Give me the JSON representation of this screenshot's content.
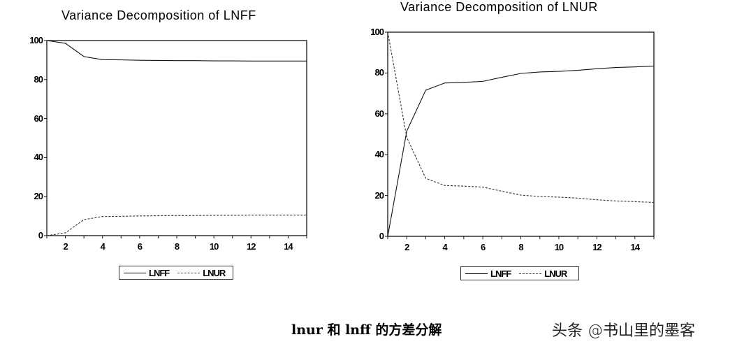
{
  "chart_data": [
    {
      "type": "line",
      "title": "Variance Decomposition of LNFF",
      "xlabel": "",
      "ylabel": "",
      "x": [
        1,
        2,
        3,
        4,
        5,
        6,
        7,
        8,
        9,
        10,
        11,
        12,
        13,
        14,
        15
      ],
      "xticks": [
        "2",
        "4",
        "6",
        "8",
        "10",
        "12",
        "14"
      ],
      "yticks": [
        "0",
        "20",
        "40",
        "60",
        "80",
        "100"
      ],
      "ylim": [
        0,
        100
      ],
      "xlim": [
        1,
        15
      ],
      "grid": false,
      "legend_position": "bottom",
      "series": [
        {
          "name": "LNFF",
          "style": "solid",
          "values": [
            100,
            98.6,
            91.8,
            90.2,
            90.1,
            89.9,
            89.8,
            89.7,
            89.7,
            89.6,
            89.6,
            89.5,
            89.5,
            89.5,
            89.5
          ]
        },
        {
          "name": "LNUR",
          "style": "dashed",
          "values": [
            0,
            1.4,
            8.2,
            9.8,
            9.9,
            10.1,
            10.2,
            10.3,
            10.3,
            10.4,
            10.4,
            10.5,
            10.5,
            10.5,
            10.5
          ]
        }
      ]
    },
    {
      "type": "line",
      "title": "Variance Decomposition of LNUR",
      "xlabel": "",
      "ylabel": "",
      "x": [
        1,
        2,
        3,
        4,
        5,
        6,
        7,
        8,
        9,
        10,
        11,
        12,
        13,
        14,
        15
      ],
      "xticks": [
        "2",
        "4",
        "6",
        "8",
        "10",
        "12",
        "14"
      ],
      "yticks": [
        "0",
        "20",
        "40",
        "60",
        "80",
        "100"
      ],
      "ylim": [
        0,
        100
      ],
      "xlim": [
        1,
        15
      ],
      "grid": false,
      "legend_position": "bottom",
      "series": [
        {
          "name": "LNFF",
          "style": "solid",
          "values": [
            0,
            51.5,
            71.6,
            75.1,
            75.4,
            75.9,
            77.9,
            79.8,
            80.5,
            80.8,
            81.3,
            82.1,
            82.7,
            83.0,
            83.4
          ]
        },
        {
          "name": "LNUR",
          "style": "dashed",
          "values": [
            100,
            48.5,
            28.4,
            24.9,
            24.6,
            24.1,
            22.1,
            20.2,
            19.5,
            19.2,
            18.7,
            17.9,
            17.3,
            17.0,
            16.6
          ]
        }
      ]
    }
  ],
  "caption": "lnur 和 lnff 的方差分解",
  "watermark": "头条 @书山里的墨客"
}
